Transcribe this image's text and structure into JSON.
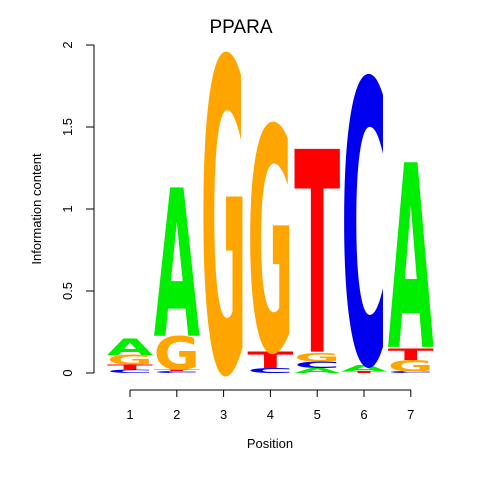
{
  "chart_data": {
    "type": "sequence-logo",
    "title": "PPARA",
    "xlabel": "Position",
    "ylabel": "Information content",
    "ylim": [
      0,
      2
    ],
    "y_ticks": [
      "0",
      "0.5",
      "1",
      "1.5",
      "2"
    ],
    "y_tick_values": [
      0,
      0.5,
      1,
      1.5,
      2
    ],
    "x_ticks": [
      "1",
      "2",
      "3",
      "4",
      "5",
      "6",
      "7"
    ],
    "letter_colors": {
      "A": "#00ee00",
      "C": "#0000ee",
      "G": "#ffa500",
      "T": "#ff0000"
    },
    "positions": [
      {
        "position": "1",
        "letters": [
          {
            "base": "C",
            "height": 0.02
          },
          {
            "base": "T",
            "height": 0.03
          },
          {
            "base": "G",
            "height": 0.06
          },
          {
            "base": "A",
            "height": 0.1
          }
        ]
      },
      {
        "position": "2",
        "letters": [
          {
            "base": "C",
            "height": 0.01
          },
          {
            "base": "T",
            "height": 0.01
          },
          {
            "base": "G",
            "height": 0.2
          },
          {
            "base": "A",
            "height": 0.9
          }
        ]
      },
      {
        "position": "3",
        "letters": [
          {
            "base": "G",
            "height": 1.9
          }
        ]
      },
      {
        "position": "4",
        "letters": [
          {
            "base": "C",
            "height": 0.03
          },
          {
            "base": "T",
            "height": 0.1
          },
          {
            "base": "G",
            "height": 1.36
          }
        ]
      },
      {
        "position": "5",
        "letters": [
          {
            "base": "A",
            "height": 0.03
          },
          {
            "base": "C",
            "height": 0.04
          },
          {
            "base": "G",
            "height": 0.05
          },
          {
            "base": "T",
            "height": 1.23
          }
        ]
      },
      {
        "position": "6",
        "letters": [
          {
            "base": "T",
            "height": 0.01
          },
          {
            "base": "A",
            "height": 0.04
          },
          {
            "base": "C",
            "height": 1.72
          }
        ]
      },
      {
        "position": "7",
        "letters": [
          {
            "base": "C",
            "height": 0.01
          },
          {
            "base": "G",
            "height": 0.07
          },
          {
            "base": "T",
            "height": 0.07
          },
          {
            "base": "A",
            "height": 1.12
          }
        ]
      }
    ]
  }
}
